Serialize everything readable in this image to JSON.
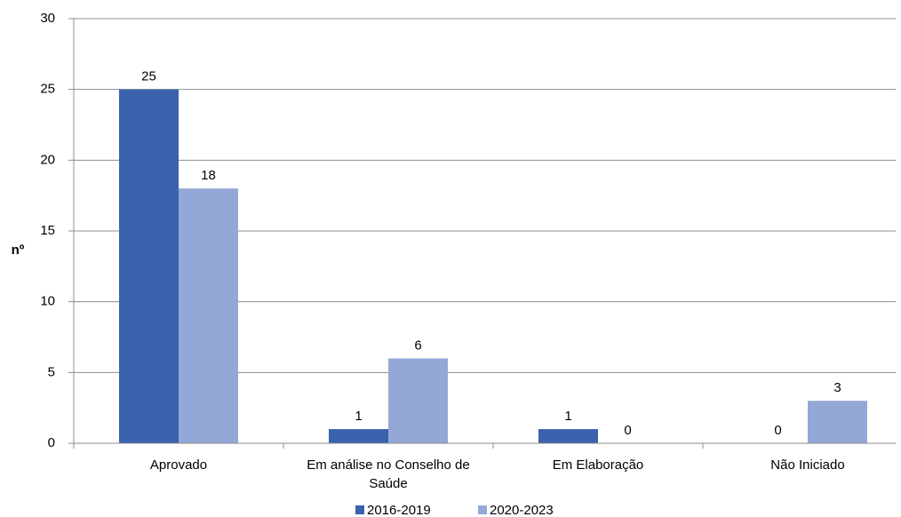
{
  "chart_data": {
    "type": "bar",
    "y_label": "nº",
    "categories": [
      "Aprovado",
      "Em análise no Conselho de Saúde",
      "Em Elaboração",
      "Não Iniciado"
    ],
    "series": [
      {
        "name": "2016-2019",
        "color": "#3a62ad",
        "values": [
          25,
          1,
          1,
          0
        ]
      },
      {
        "name": "2020-2023",
        "color": "#94a8d8",
        "values": [
          18,
          6,
          0,
          3
        ]
      }
    ],
    "ylim": [
      0,
      30
    ],
    "yticks": [
      0,
      5,
      10,
      15,
      20,
      25,
      30
    ],
    "grid": true,
    "legend": "bottom"
  }
}
